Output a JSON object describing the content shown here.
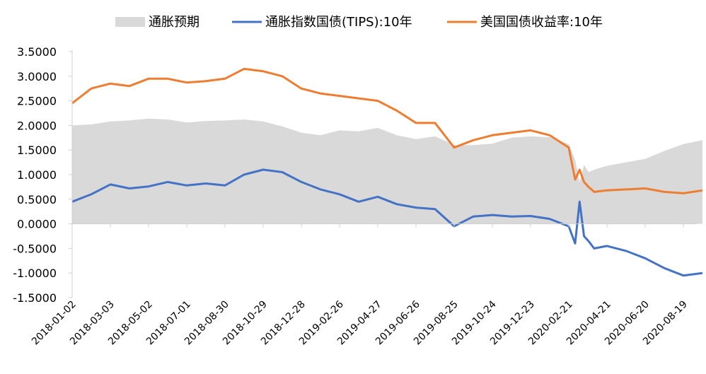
{
  "chart_data": {
    "type": "line",
    "title": "",
    "xlabel": "",
    "ylabel": "",
    "ylim": [
      -1.5,
      3.5
    ],
    "y_ticks": [
      "3.5000",
      "3.0000",
      "2.5000",
      "2.0000",
      "1.5000",
      "1.0000",
      "0.5000",
      "0.0000",
      "-0.5000",
      "-1.0000",
      "-1.5000"
    ],
    "y_tick_values": [
      3.5,
      3.0,
      2.5,
      2.0,
      1.5,
      1.0,
      0.5,
      0.0,
      -0.5,
      -1.0,
      -1.5
    ],
    "x_tick_labels": [
      "2018-01-02",
      "2018-03-03",
      "2018-05-02",
      "2018-07-01",
      "2018-08-30",
      "2018-10-29",
      "2018-12-28",
      "2019-02-26",
      "2019-04-27",
      "2019-06-26",
      "2019-08-25",
      "2019-10-24",
      "2019-12-23",
      "2020-02-21",
      "2020-04-21",
      "2020-06-20",
      "2020-08-19"
    ],
    "x": [
      "2018-01-02",
      "2018-02-01",
      "2018-03-03",
      "2018-04-02",
      "2018-05-02",
      "2018-06-01",
      "2018-07-01",
      "2018-07-31",
      "2018-08-30",
      "2018-09-29",
      "2018-10-29",
      "2018-11-28",
      "2018-12-28",
      "2019-01-27",
      "2019-02-26",
      "2019-03-28",
      "2019-04-27",
      "2019-05-27",
      "2019-06-26",
      "2019-07-26",
      "2019-08-25",
      "2019-09-24",
      "2019-10-24",
      "2019-11-23",
      "2019-12-23",
      "2020-01-22",
      "2020-02-21",
      "2020-03-02",
      "2020-03-09",
      "2020-03-16",
      "2020-03-23",
      "2020-04-01",
      "2020-04-21",
      "2020-05-21",
      "2020-06-20",
      "2020-07-20",
      "2020-08-19",
      "2020-09-18"
    ],
    "series": [
      {
        "name": "通胀预期",
        "style": "area",
        "color": "#d9d9d9",
        "values": [
          2.0,
          2.02,
          2.08,
          2.1,
          2.14,
          2.12,
          2.06,
          2.09,
          2.1,
          2.12,
          2.08,
          1.98,
          1.85,
          1.8,
          1.9,
          1.88,
          1.95,
          1.8,
          1.72,
          1.78,
          1.6,
          1.6,
          1.63,
          1.75,
          1.78,
          1.76,
          1.62,
          1.3,
          0.85,
          1.2,
          1.05,
          1.1,
          1.18,
          1.25,
          1.32,
          1.48,
          1.62,
          1.7
        ]
      },
      {
        "name": "通胀指数国债(TIPS):10年",
        "style": "line",
        "color": "#4472c4",
        "values": [
          0.45,
          0.6,
          0.8,
          0.72,
          0.76,
          0.85,
          0.78,
          0.82,
          0.78,
          1.0,
          1.1,
          1.05,
          0.85,
          0.7,
          0.6,
          0.45,
          0.55,
          0.4,
          0.33,
          0.3,
          -0.05,
          0.15,
          0.18,
          0.15,
          0.16,
          0.1,
          -0.05,
          -0.4,
          0.45,
          -0.25,
          -0.35,
          -0.5,
          -0.45,
          -0.55,
          -0.7,
          -0.9,
          -1.05,
          -1.0
        ]
      },
      {
        "name": "美国国债收益率:10年",
        "style": "line",
        "color": "#ed7d31",
        "values": [
          2.45,
          2.75,
          2.85,
          2.8,
          2.95,
          2.95,
          2.87,
          2.9,
          2.95,
          3.15,
          3.1,
          3.0,
          2.75,
          2.65,
          2.6,
          2.55,
          2.5,
          2.3,
          2.05,
          2.05,
          1.55,
          1.7,
          1.8,
          1.85,
          1.9,
          1.8,
          1.55,
          0.9,
          1.1,
          0.85,
          0.75,
          0.65,
          0.68,
          0.7,
          0.72,
          0.65,
          0.62,
          0.68
        ]
      }
    ],
    "legend_position": "top",
    "grid": false
  }
}
